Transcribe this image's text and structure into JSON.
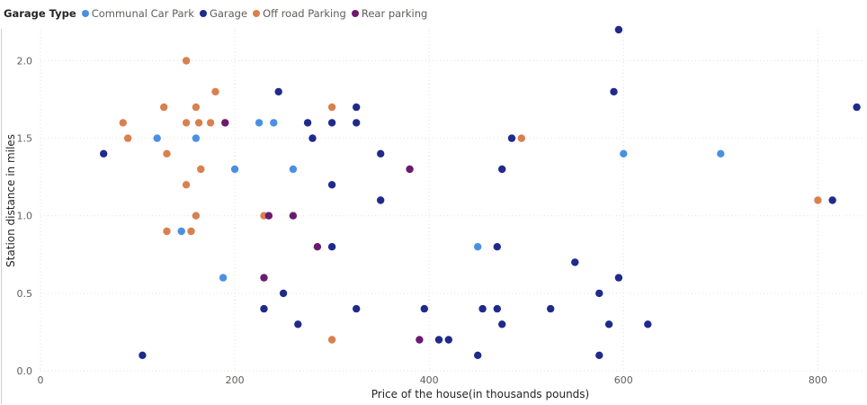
{
  "legend": {
    "title": "Garage Type",
    "items": [
      {
        "label": "Communal Car Park",
        "color": "#4a90e2"
      },
      {
        "label": "Garage",
        "color": "#1f2a8c"
      },
      {
        "label": "Off road Parking",
        "color": "#d9804f"
      },
      {
        "label": "Rear parking",
        "color": "#6b1a6f"
      }
    ]
  },
  "chart_data": {
    "type": "scatter",
    "xlabel": "Price of the house(in thousands pounds)",
    "ylabel": "Station distance in miles",
    "xlim": [
      0,
      845
    ],
    "ylim": [
      0,
      2.2
    ],
    "xticks": [
      0,
      200,
      400,
      600,
      800
    ],
    "yticks": [
      0.0,
      0.5,
      1.0,
      1.5,
      2.0
    ],
    "ytick_labels": [
      "0.0",
      "0.5",
      "1.0",
      "1.5",
      "2.0"
    ],
    "grid": true,
    "legend_position": "top-left",
    "series": [
      {
        "name": "Communal Car Park",
        "color": "#4a90e2",
        "points": [
          [
            120,
            1.5
          ],
          [
            145,
            0.9
          ],
          [
            160,
            1.5
          ],
          [
            188,
            0.6
          ],
          [
            200,
            1.3
          ],
          [
            225,
            1.6
          ],
          [
            240,
            1.6
          ],
          [
            260,
            1.3
          ],
          [
            450,
            0.8
          ],
          [
            600,
            1.4
          ],
          [
            700,
            1.4
          ]
        ]
      },
      {
        "name": "Garage",
        "color": "#1f2a8c",
        "points": [
          [
            65,
            1.4
          ],
          [
            105,
            0.1
          ],
          [
            230,
            0.4
          ],
          [
            245,
            1.8
          ],
          [
            250,
            0.5
          ],
          [
            265,
            0.3
          ],
          [
            275,
            1.6
          ],
          [
            280,
            1.5
          ],
          [
            300,
            1.6
          ],
          [
            300,
            1.2
          ],
          [
            300,
            0.8
          ],
          [
            325,
            1.7
          ],
          [
            325,
            1.6
          ],
          [
            325,
            0.4
          ],
          [
            350,
            1.4
          ],
          [
            350,
            1.1
          ],
          [
            395,
            0.4
          ],
          [
            410,
            0.2
          ],
          [
            420,
            0.2
          ],
          [
            450,
            0.1
          ],
          [
            455,
            0.4
          ],
          [
            470,
            0.8
          ],
          [
            470,
            0.4
          ],
          [
            475,
            1.3
          ],
          [
            475,
            0.3
          ],
          [
            485,
            1.5
          ],
          [
            525,
            0.4
          ],
          [
            550,
            0.7
          ],
          [
            575,
            0.5
          ],
          [
            575,
            0.1
          ],
          [
            585,
            0.3
          ],
          [
            590,
            1.8
          ],
          [
            595,
            2.2
          ],
          [
            595,
            0.6
          ],
          [
            625,
            0.3
          ],
          [
            815,
            1.1
          ],
          [
            840,
            1.7
          ]
        ]
      },
      {
        "name": "Off road Parking",
        "color": "#d9804f",
        "points": [
          [
            85,
            1.6
          ],
          [
            90,
            1.5
          ],
          [
            127,
            1.7
          ],
          [
            130,
            1.4
          ],
          [
            130,
            0.9
          ],
          [
            150,
            2.0
          ],
          [
            150,
            1.6
          ],
          [
            150,
            1.2
          ],
          [
            155,
            0.9
          ],
          [
            160,
            1.7
          ],
          [
            160,
            1.0
          ],
          [
            163,
            1.6
          ],
          [
            165,
            1.3
          ],
          [
            175,
            1.6
          ],
          [
            180,
            1.8
          ],
          [
            190,
            1.6
          ],
          [
            230,
            1.0
          ],
          [
            300,
            1.7
          ],
          [
            300,
            0.2
          ],
          [
            495,
            1.5
          ],
          [
            800,
            1.1
          ]
        ]
      },
      {
        "name": "Rear parking",
        "color": "#6b1a6f",
        "points": [
          [
            190,
            1.6
          ],
          [
            230,
            0.6
          ],
          [
            235,
            1.0
          ],
          [
            260,
            1.0
          ],
          [
            285,
            0.8
          ],
          [
            380,
            1.3
          ],
          [
            390,
            0.2
          ]
        ]
      }
    ]
  }
}
